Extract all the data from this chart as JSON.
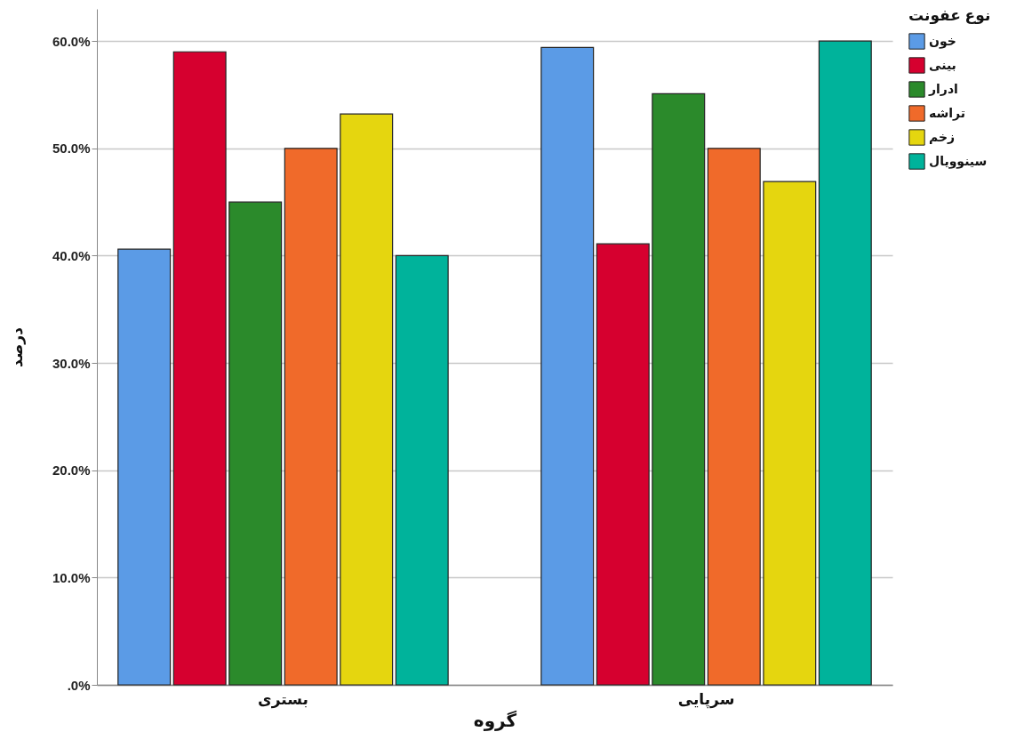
{
  "chart_data": {
    "type": "bar",
    "xlabel": "گروه",
    "ylabel": "درصد",
    "legend_title": "نوع عفونت",
    "categories": [
      "بستری",
      "سرپایی"
    ],
    "series": [
      {
        "name": "خون",
        "color": "#5b9be6",
        "values": [
          40.6,
          59.4
        ]
      },
      {
        "name": "بینی",
        "color": "#d6002f",
        "values": [
          59.0,
          41.1
        ]
      },
      {
        "name": "ادرار",
        "color": "#2b8a2b",
        "values": [
          45.0,
          55.1
        ]
      },
      {
        "name": "تراشه",
        "color": "#f06a2a",
        "values": [
          50.0,
          50.0
        ]
      },
      {
        "name": "زخم",
        "color": "#e5d60f",
        "values": [
          53.2,
          46.9
        ]
      },
      {
        "name": "سینوویال",
        "color": "#00b39b",
        "values": [
          40.0,
          60.0
        ]
      }
    ],
    "ylim": [
      0,
      63
    ],
    "yticks": [
      {
        "value": 0,
        "label": ".0%"
      },
      {
        "value": 10,
        "label": "10.0%"
      },
      {
        "value": 20,
        "label": "20.0%"
      },
      {
        "value": 30,
        "label": "30.0%"
      },
      {
        "value": 40,
        "label": "40.0%"
      },
      {
        "value": 50,
        "label": "50.0%"
      },
      {
        "value": 60,
        "label": "60.0%"
      }
    ],
    "grid": "y",
    "legend": "top right"
  }
}
